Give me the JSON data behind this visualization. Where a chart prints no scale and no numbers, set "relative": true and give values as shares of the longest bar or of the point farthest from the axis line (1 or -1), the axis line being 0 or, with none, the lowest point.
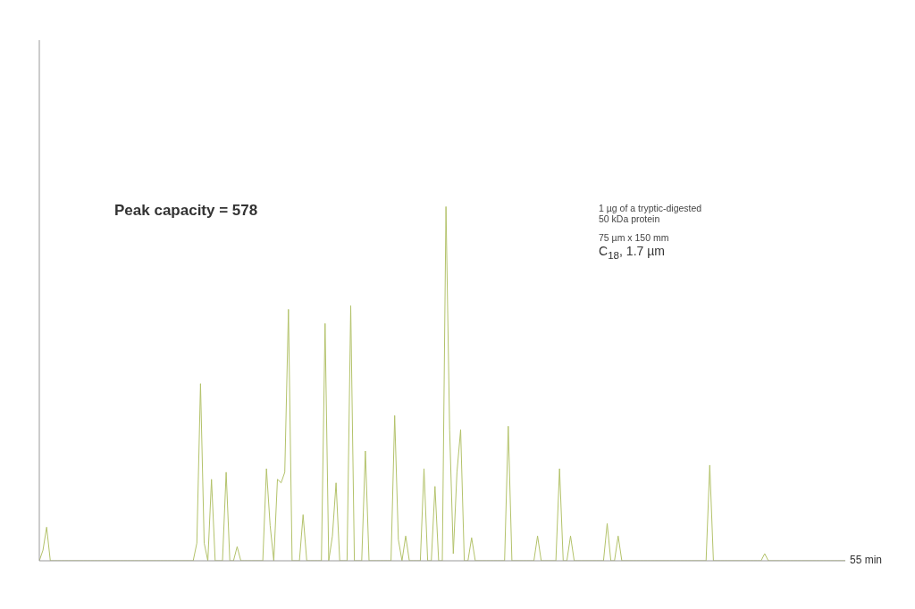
{
  "chart_data": {
    "type": "line",
    "relative": true,
    "color": "#b3c26a",
    "marker": "none",
    "line_style": "solid",
    "categories": [
      null,
      null,
      null,
      null,
      null,
      null,
      null,
      null,
      null,
      null,
      null,
      null,
      null,
      null,
      null,
      null,
      null,
      null,
      null,
      null,
      null,
      null,
      null,
      null,
      null,
      null,
      null,
      null,
      null,
      null,
      null,
      null,
      null,
      null,
      null,
      null,
      null,
      null,
      null,
      null,
      null,
      null,
      null,
      null,
      null,
      null,
      null,
      null,
      null,
      null,
      null,
      null,
      null,
      null,
      null,
      null,
      null,
      null,
      null,
      null,
      null,
      null,
      null,
      null,
      null,
      null,
      null,
      null,
      null,
      null,
      null,
      null,
      null,
      null,
      null,
      null,
      null,
      null,
      null,
      null,
      null,
      null,
      null,
      null,
      null,
      null,
      null,
      null,
      null,
      null,
      null,
      null,
      null,
      null,
      null,
      null,
      null,
      null,
      null,
      null,
      null,
      null,
      null,
      null,
      null,
      null,
      null,
      null,
      null,
      null,
      null,
      null,
      null,
      null,
      null,
      null,
      null,
      null,
      null,
      null,
      null,
      null,
      null,
      null,
      null,
      null,
      null,
      null,
      null,
      null,
      null,
      null,
      null,
      null,
      null,
      null,
      null,
      null,
      null,
      null,
      null,
      null,
      null,
      null,
      null,
      null,
      null,
      null,
      null,
      null,
      null,
      null,
      null,
      null,
      null,
      null,
      null,
      null,
      null,
      null,
      null,
      null,
      null,
      null,
      null,
      null,
      null,
      null,
      null,
      null,
      null,
      null,
      null,
      null,
      null,
      null,
      null,
      null,
      null,
      null,
      null,
      null,
      null,
      null,
      null,
      null,
      null,
      null,
      null,
      null,
      null,
      null,
      null,
      null,
      null,
      null,
      null,
      null,
      null,
      null,
      null,
      null,
      null,
      null,
      null,
      null,
      null,
      null,
      null,
      null,
      null,
      null,
      null,
      null,
      null,
      null,
      null,
      null,
      null,
      null,
      null
    ],
    "values": [
      0,
      0.03,
      0.095,
      0,
      0,
      0,
      0,
      0,
      0,
      0,
      0,
      0,
      0,
      0,
      0,
      0,
      0,
      0,
      0,
      0,
      0,
      0,
      0,
      0,
      0,
      0,
      0,
      0,
      0,
      0,
      0,
      0,
      0,
      0,
      0,
      0,
      0,
      0,
      0,
      0,
      0,
      0,
      0,
      0.05,
      0.5,
      0.05,
      0,
      0.23,
      0,
      0,
      0,
      0.25,
      0,
      0,
      0.04,
      0,
      0,
      0,
      0,
      0,
      0,
      0,
      0.26,
      0.1,
      0,
      0.23,
      0.22,
      0.25,
      0.71,
      0,
      0,
      0,
      0.13,
      0,
      0,
      0,
      0,
      0,
      0.67,
      0,
      0.07,
      0.22,
      0,
      0,
      0,
      0.72,
      0,
      0,
      0,
      0.31,
      0,
      0,
      0,
      0,
      0,
      0,
      0,
      0.41,
      0.06,
      0,
      0.07,
      0,
      0,
      0,
      0,
      0.26,
      0,
      0,
      0.21,
      0,
      0,
      1,
      0.37,
      0.02,
      0.25,
      0.37,
      0,
      0,
      0.065,
      0,
      0,
      0,
      0,
      0,
      0,
      0,
      0,
      0,
      0.38,
      0,
      0,
      0,
      0,
      0,
      0,
      0,
      0.07,
      0,
      0,
      0,
      0,
      0,
      0.26,
      0,
      0,
      0.07,
      0,
      0,
      0,
      0,
      0,
      0,
      0,
      0,
      0,
      0.105,
      0,
      0,
      0.07,
      0,
      0,
      0,
      0,
      0,
      0,
      0,
      0,
      0,
      0,
      0,
      0,
      0,
      0,
      0,
      0,
      0,
      0,
      0,
      0,
      0,
      0,
      0,
      0,
      0.27,
      0,
      0,
      0,
      0,
      0,
      0,
      0,
      0,
      0,
      0,
      0,
      0,
      0,
      0,
      0.02,
      0,
      0,
      0,
      0,
      0,
      0,
      0,
      0,
      0,
      0,
      0,
      0,
      0,
      0,
      0,
      0,
      0,
      0,
      0,
      0,
      0,
      0
    ],
    "annotations": [
      "Peak capacity = 578",
      "1 µg of a tryptic-digested 50 kDa protein",
      "75 µm x 150 mm",
      "C$_{18}$, 1.7 µm",
      "55 min"
    ]
  }
}
